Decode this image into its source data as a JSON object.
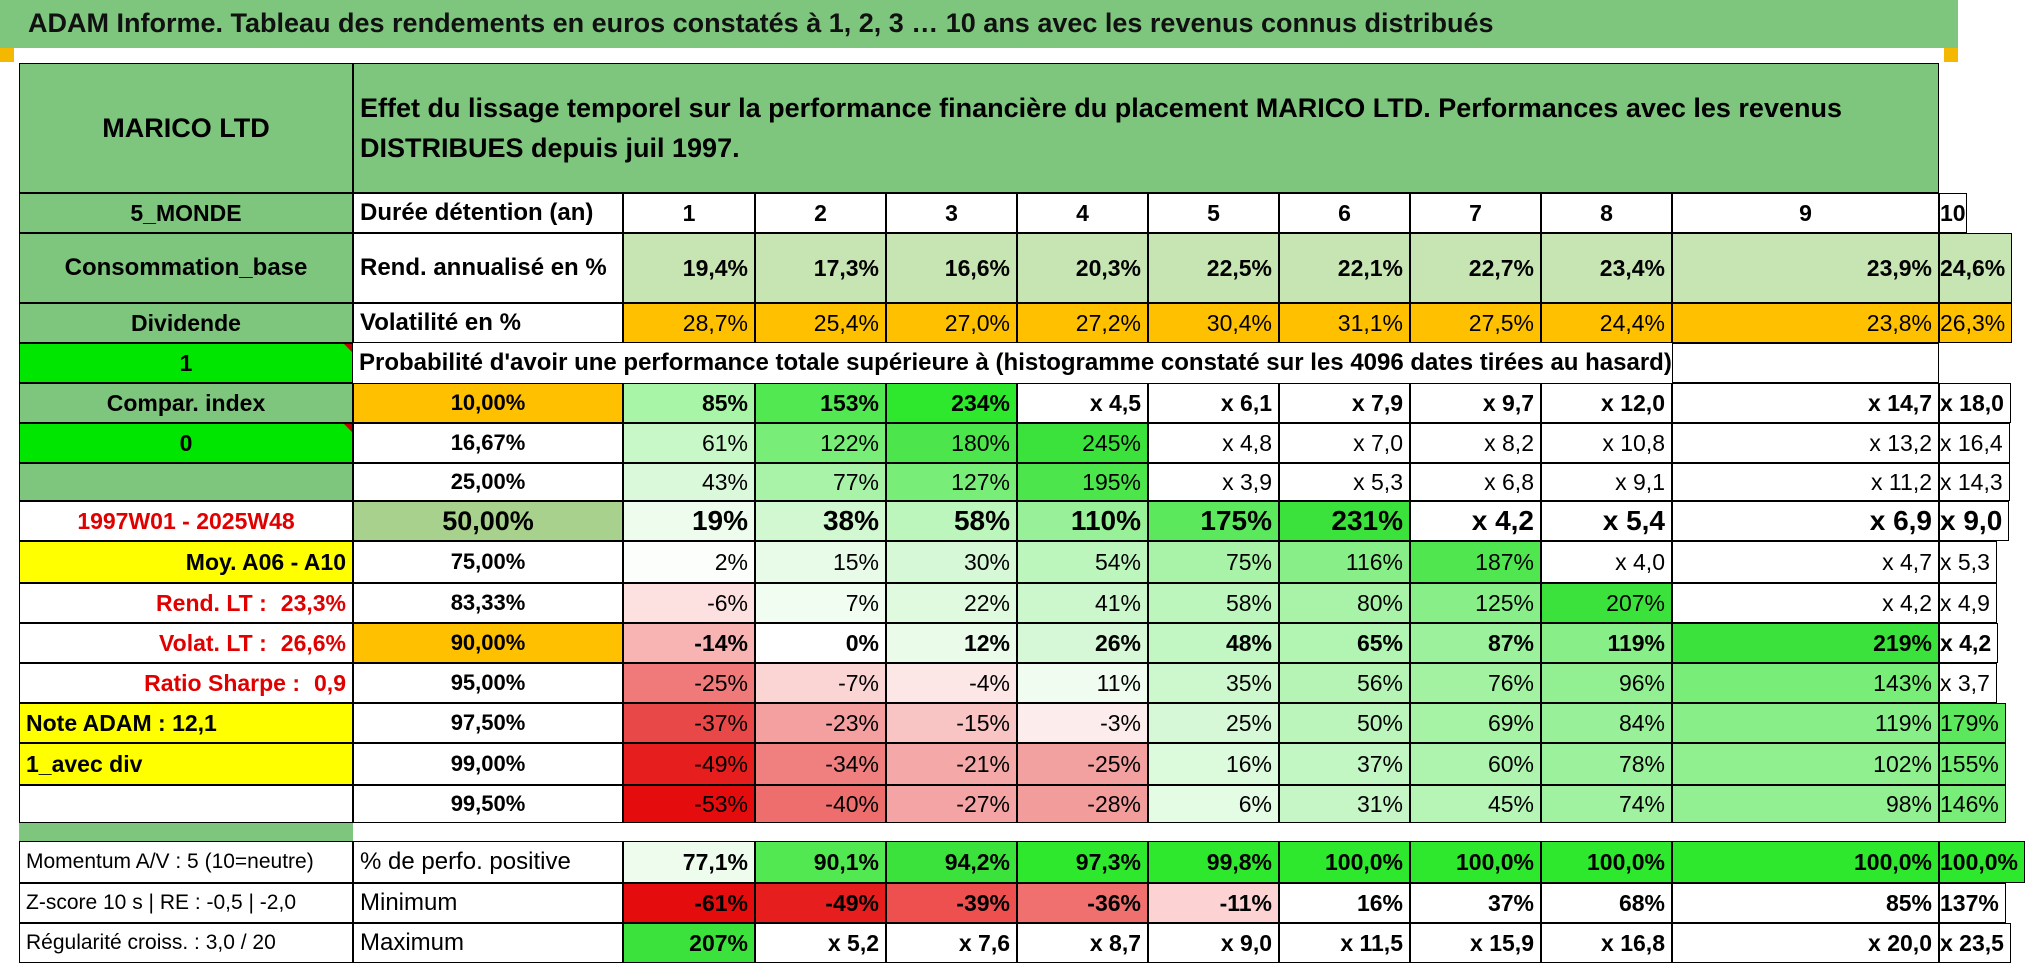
{
  "title": "ADAM Informe. Tableau des rendements en euros constatés à 1, 2, 3 … 10 ans avec les revenus connus distribués",
  "left_panel": {
    "name": "MARICO LTD",
    "zone": "5_MONDE",
    "sector": "Consommation_base",
    "type": "Dividende",
    "flag_value": "1",
    "compar_label": "Compar. index",
    "compar_value": "0",
    "period": "1997W01 - 2025W48",
    "moy": "Moy. A06 - A10",
    "rend_lt_label": "Rend. LT :",
    "rend_lt_value": "23,3%",
    "volat_lt_label": "Volat. LT :",
    "volat_lt_value": "26,6%",
    "sharpe_label": "Ratio Sharpe :",
    "sharpe_value": "0,9",
    "note": "Note ADAM : 12,1",
    "div_mode": "1_avec div",
    "momentum": "Momentum A/V : 5 (10=neutre)",
    "zscore": "Z-score 10 s | RE : -0,5 | -2,0",
    "regularite": "Régularité croiss. : 3,0 / 20"
  },
  "header": {
    "description": "Effet du lissage temporel sur la performance financière du placement MARICO LTD. Performances avec les revenus DISTRIBUES depuis juil 1997.",
    "duree_label": "Durée détention (an)",
    "years": [
      "1",
      "2",
      "3",
      "4",
      "5",
      "6",
      "7",
      "8",
      "9",
      "10"
    ],
    "rend_label": "Rend. annualisé en %",
    "rend": [
      "19,4%",
      "17,3%",
      "16,6%",
      "20,3%",
      "22,5%",
      "22,1%",
      "22,7%",
      "23,4%",
      "23,9%",
      "24,6%"
    ],
    "vol_label": "Volatilité en %",
    "vol": [
      "28,7%",
      "25,4%",
      "27,0%",
      "27,2%",
      "30,4%",
      "31,1%",
      "27,5%",
      "24,4%",
      "23,8%",
      "26,3%"
    ],
    "prob_label": "Probabilité d'avoir une performance totale supérieure à (histogramme constaté sur les 4096 dates tirées au hasard)"
  },
  "prob_rows": [
    {
      "p": "10,00%",
      "v": [
        "85%",
        "153%",
        "234%",
        "x 4,5",
        "x 6,1",
        "x 7,9",
        "x 9,7",
        "x 12,0",
        "x 14,7",
        "x 18,0"
      ]
    },
    {
      "p": "16,67%",
      "v": [
        "61%",
        "122%",
        "180%",
        "245%",
        "x 4,8",
        "x 7,0",
        "x 8,2",
        "x 10,8",
        "x 13,2",
        "x 16,4"
      ]
    },
    {
      "p": "25,00%",
      "v": [
        "43%",
        "77%",
        "127%",
        "195%",
        "x 3,9",
        "x 5,3",
        "x 6,8",
        "x 9,1",
        "x 11,2",
        "x 14,3"
      ]
    },
    {
      "p": "50,00%",
      "v": [
        "19%",
        "38%",
        "58%",
        "110%",
        "175%",
        "231%",
        "x 4,2",
        "x 5,4",
        "x 6,9",
        "x 9,0"
      ]
    },
    {
      "p": "75,00%",
      "v": [
        "2%",
        "15%",
        "30%",
        "54%",
        "75%",
        "116%",
        "187%",
        "x 4,0",
        "x 4,7",
        "x 5,3"
      ]
    },
    {
      "p": "83,33%",
      "v": [
        "-6%",
        "7%",
        "22%",
        "41%",
        "58%",
        "80%",
        "125%",
        "207%",
        "x 4,2",
        "x 4,9"
      ]
    },
    {
      "p": "90,00%",
      "v": [
        "-14%",
        "0%",
        "12%",
        "26%",
        "48%",
        "65%",
        "87%",
        "119%",
        "219%",
        "x 4,2"
      ]
    },
    {
      "p": "95,00%",
      "v": [
        "-25%",
        "-7%",
        "-4%",
        "11%",
        "35%",
        "56%",
        "76%",
        "96%",
        "143%",
        "x 3,7"
      ]
    },
    {
      "p": "97,50%",
      "v": [
        "-37%",
        "-23%",
        "-15%",
        "-3%",
        "25%",
        "50%",
        "69%",
        "84%",
        "119%",
        "179%"
      ]
    },
    {
      "p": "99,00%",
      "v": [
        "-49%",
        "-34%",
        "-21%",
        "-25%",
        "16%",
        "37%",
        "60%",
        "78%",
        "102%",
        "155%"
      ]
    },
    {
      "p": "99,50%",
      "v": [
        "-53%",
        "-40%",
        "-27%",
        "-28%",
        "6%",
        "31%",
        "45%",
        "74%",
        "98%",
        "146%"
      ]
    }
  ],
  "bottom": {
    "pos_label": "% de perfo. positive",
    "pos": [
      "77,1%",
      "90,1%",
      "94,2%",
      "97,3%",
      "99,8%",
      "100,0%",
      "100,0%",
      "100,0%",
      "100,0%",
      "100,0%"
    ],
    "min_label": "Minimum",
    "min": [
      "-61%",
      "-49%",
      "-39%",
      "-36%",
      "-11%",
      "16%",
      "37%",
      "68%",
      "85%",
      "137%"
    ],
    "max_label": "Maximum",
    "max": [
      "207%",
      "x 5,2",
      "x 7,6",
      "x 8,7",
      "x 9,0",
      "x 11,5",
      "x 15,9",
      "x 16,8",
      "x 20,0",
      "x 23,5"
    ]
  },
  "colors": {
    "header_green": "#7ec57e",
    "bright_green": "#00e600",
    "orange": "#ffc000",
    "yellow": "#ffff00",
    "red_text": "#e00000",
    "rend_fill": "#c6e5b3"
  },
  "prob_colors": [
    [
      "#a8f5a8",
      "#52e852",
      "#2ee82e",
      "#ffffff",
      "#ffffff",
      "#ffffff",
      "#ffffff",
      "#ffffff",
      "#ffffff",
      "#ffffff"
    ],
    [
      "#c8f7c8",
      "#78ee78",
      "#4ce64c",
      "#3ce23c",
      "#ffffff",
      "#ffffff",
      "#ffffff",
      "#ffffff",
      "#ffffff",
      "#ffffff"
    ],
    [
      "#daf9da",
      "#a8f3a8",
      "#78ee78",
      "#4ce64c",
      "#ffffff",
      "#ffffff",
      "#ffffff",
      "#ffffff",
      "#ffffff",
      "#ffffff"
    ],
    [
      "#edfced",
      "#d2f8d2",
      "#bdf6bd",
      "#98f098",
      "#5ce85c",
      "#3ce23c",
      "#ffffff",
      "#ffffff",
      "#ffffff",
      "#ffffff"
    ],
    [
      "#fbfefb",
      "#e8fbe8",
      "#d6f8d6",
      "#bdf6bd",
      "#a8f3a8",
      "#88ef88",
      "#50e650",
      "#ffffff",
      "#ffffff",
      "#ffffff"
    ],
    [
      "#fde0e0",
      "#f2fdf2",
      "#e0fae0",
      "#ccf7cc",
      "#bdf6bd",
      "#a8f3a8",
      "#88ef88",
      "#3ce23c",
      "#ffffff",
      "#ffffff"
    ],
    [
      "#f8b3b3",
      "#ffffff",
      "#eafbea",
      "#d6f8d6",
      "#c2f6c2",
      "#b2f4b2",
      "#9cf19c",
      "#88ef88",
      "#3ce23c",
      "#ffffff"
    ],
    [
      "#f07a7a",
      "#fbd4d4",
      "#fde6e6",
      "#effcef",
      "#cdf7cd",
      "#b5f4b5",
      "#a2f2a2",
      "#92f092",
      "#78ee78",
      "#ffffff"
    ],
    [
      "#e84848",
      "#f5a0a0",
      "#f9c4c4",
      "#fdecec",
      "#d6f8d6",
      "#bcf5bc",
      "#a6f3a6",
      "#98f098",
      "#88ef88",
      "#5ce85c"
    ],
    [
      "#e61e1e",
      "#f08080",
      "#f5a8a8",
      "#f2a0a0",
      "#dcfadc",
      "#c2f6c2",
      "#aef4ae",
      "#9cf19c",
      "#90f090",
      "#74ed74"
    ],
    [
      "#e40c0c",
      "#ee6e6e",
      "#f4a4a4",
      "#f29c9c",
      "#e4fbe4",
      "#c6f6c6",
      "#b6f5b6",
      "#a0f2a0",
      "#92f092",
      "#78ee78"
    ]
  ],
  "pos_colors": [
    "#edfced",
    "#52e852",
    "#3ce23c",
    "#2ee82e",
    "#2ee82e",
    "#2ee82e",
    "#2ee82e",
    "#2ee82e",
    "#2ee82e",
    "#2ee82e"
  ],
  "min_colors": [
    "#e40c0c",
    "#e61e1e",
    "#ee5050",
    "#f07070",
    "#fcd2d2",
    "#ffffff",
    "#ffffff",
    "#ffffff",
    "#ffffff",
    "#ffffff"
  ],
  "max_colors": [
    "#3ce23c",
    "#ffffff",
    "#ffffff",
    "#ffffff",
    "#ffffff",
    "#ffffff",
    "#ffffff",
    "#ffffff",
    "#ffffff",
    "#ffffff"
  ]
}
